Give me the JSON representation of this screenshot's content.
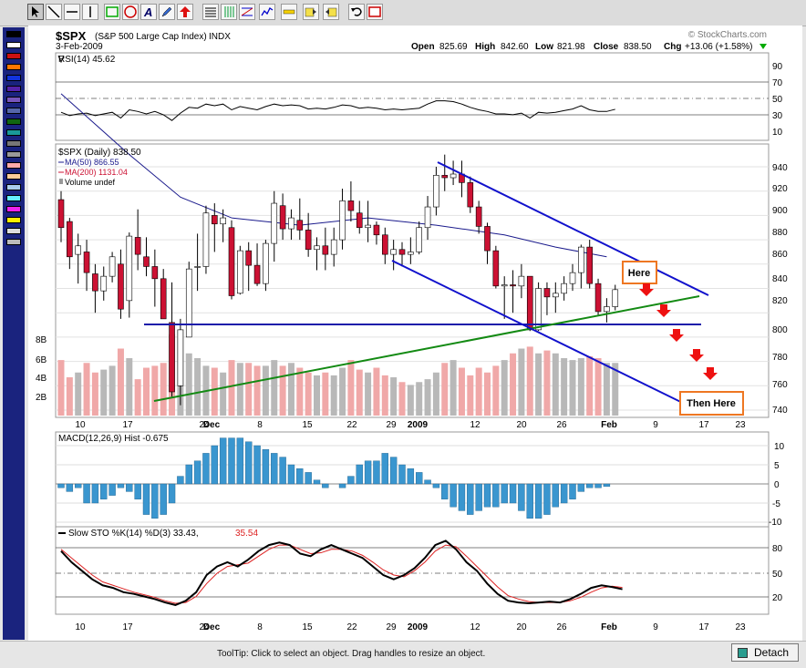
{
  "header": {
    "symbol": "$SPX",
    "name": "(S&P 500 Large Cap Index)",
    "exchange": "INDX",
    "date": "3-Feb-2009",
    "watermark": "© StockCharts.com",
    "open_label": "Open",
    "open": "825.69",
    "high_label": "High",
    "high": "842.60",
    "low_label": "Low",
    "low": "821.98",
    "close_label": "Close",
    "close": "838.50",
    "chg_label": "Chg",
    "chg": "+13.06 (+1.58%)"
  },
  "rsi": {
    "label": "RSI(14) 45.62",
    "ticks": [
      "90",
      "70",
      "50",
      "30",
      "10"
    ]
  },
  "price": {
    "legend": [
      "$SPX (Daily) 838.50",
      "MA(50) 866.55",
      "MA(200) 1131.04",
      "Volume undef"
    ],
    "ticks": [
      "940",
      "920",
      "900",
      "880",
      "860",
      "840",
      "820",
      "800",
      "780",
      "760",
      "740"
    ],
    "vol_ticks": [
      "8B",
      "6B",
      "4B",
      "2B"
    ]
  },
  "annotations": {
    "here": "Here",
    "then_here": "Then Here"
  },
  "dates": [
    "10",
    "17",
    "24",
    "Dec",
    "8",
    "15",
    "22",
    "29",
    "2009",
    "12",
    "20",
    "26",
    "Feb",
    "9",
    "17",
    "23"
  ],
  "macd": {
    "label": "MACD(12,26,9) Hist -0.675",
    "ticks": [
      "10",
      "5",
      "0",
      "-5",
      "-10"
    ]
  },
  "sto": {
    "label_a": "Slow STO %K(14) %D(3) 33.43,",
    "label_b": "35.54",
    "ticks": [
      "80",
      "50",
      "20"
    ]
  },
  "status": {
    "tooltip": "ToolTip: Click to select an object. Drag handles to resize an object.",
    "detach": "Detach"
  },
  "colors": {
    "up": "#ffffff",
    "down": "#cc1133",
    "blue": "#0000cc",
    "green": "#118811",
    "ma50": "#1a1a8c",
    "macd": "#3a96cf",
    "annot": "#ee7722",
    "arrow": "#ee1111"
  },
  "chart_data": {
    "type": "candlestick",
    "series": [
      {
        "name": "$SPX",
        "ohlc": [
          [
            913,
            920,
            878,
            890
          ],
          [
            895,
            898,
            856,
            866
          ],
          [
            868,
            885,
            844,
            875
          ],
          [
            870,
            880,
            838,
            853
          ],
          [
            852,
            860,
            820,
            838
          ],
          [
            838,
            858,
            830,
            850
          ],
          [
            850,
            870,
            845,
            866
          ],
          [
            860,
            872,
            815,
            823
          ],
          [
            830,
            886,
            816,
            883
          ],
          [
            882,
            905,
            855,
            868
          ],
          [
            866,
            882,
            850,
            858
          ],
          [
            858,
            872,
            825,
            848
          ],
          [
            848,
            856,
            815,
            815
          ],
          [
            812,
            845,
            751,
            755
          ],
          [
            760,
            815,
            744,
            806
          ],
          [
            800,
            862,
            800,
            856
          ],
          [
            858,
            885,
            838,
            858
          ],
          [
            858,
            908,
            852,
            902
          ],
          [
            900,
            910,
            870,
            893
          ],
          [
            893,
            905,
            878,
            898
          ],
          [
            890,
            896,
            831,
            834
          ],
          [
            836,
            875,
            835,
            871
          ],
          [
            871,
            878,
            838,
            859
          ],
          [
            859,
            877,
            842,
            844
          ],
          [
            844,
            880,
            838,
            877
          ],
          [
            877,
            920,
            862,
            910
          ],
          [
            908,
            918,
            880,
            889
          ],
          [
            889,
            905,
            880,
            898
          ],
          [
            896,
            914,
            880,
            888
          ],
          [
            888,
            902,
            866,
            872
          ],
          [
            872,
            882,
            855,
            875
          ],
          [
            875,
            890,
            855,
            868
          ],
          [
            868,
            890,
            858,
            880
          ],
          [
            880,
            922,
            872,
            912
          ],
          [
            912,
            928,
            895,
            904
          ],
          [
            902,
            912,
            885,
            890
          ],
          [
            890,
            912,
            878,
            892
          ],
          [
            892,
            895,
            876,
            884
          ],
          [
            884,
            890,
            860,
            868
          ],
          [
            868,
            880,
            855,
            872
          ],
          [
            872,
            878,
            858,
            868
          ],
          [
            868,
            882,
            860,
            870
          ],
          [
            870,
            895,
            868,
            890
          ],
          [
            890,
            916,
            880,
            907
          ],
          [
            907,
            940,
            900,
            933
          ],
          [
            933,
            950,
            920,
            931
          ],
          [
            931,
            945,
            925,
            934
          ],
          [
            934,
            945,
            915,
            927
          ],
          [
            927,
            932,
            902,
            907
          ],
          [
            907,
            912,
            885,
            891
          ],
          [
            891,
            894,
            860,
            871
          ],
          [
            871,
            875,
            840,
            842
          ],
          [
            842,
            850,
            815,
            843
          ],
          [
            843,
            855,
            820,
            842
          ],
          [
            842,
            860,
            832,
            850
          ],
          [
            850,
            850,
            805,
            806
          ],
          [
            806,
            845,
            805,
            840
          ],
          [
            840,
            845,
            818,
            833
          ],
          [
            833,
            845,
            820,
            836
          ],
          [
            836,
            850,
            830,
            844
          ],
          [
            844,
            860,
            838,
            853
          ],
          [
            853,
            876,
            840,
            874
          ],
          [
            874,
            880,
            840,
            844
          ],
          [
            844,
            848,
            818,
            821
          ],
          [
            821,
            832,
            812,
            825
          ],
          [
            825,
            843,
            822,
            839
          ]
        ]
      },
      {
        "name": "MA(50)",
        "values": [
          [
            0,
            1000
          ],
          [
            8,
            950
          ],
          [
            14,
            915
          ],
          [
            20,
            898
          ],
          [
            28,
            892
          ],
          [
            36,
            898
          ],
          [
            44,
            892
          ],
          [
            52,
            884
          ],
          [
            58,
            874
          ],
          [
            64,
            866
          ]
        ]
      },
      {
        "name": "MA(200)",
        "values": []
      },
      {
        "name": "Volume",
        "values": [
          5.8,
          4.0,
          4.5,
          5.5,
          4.5,
          4.8,
          5.2,
          7.0,
          6.0,
          3.8,
          5.0,
          5.2,
          5.5,
          8.5,
          9.0,
          6.5,
          6.0,
          5.2,
          5.0,
          4.5,
          5.8,
          5.5,
          5.5,
          5.2,
          5.2,
          5.8,
          5.2,
          5.5,
          5.0,
          4.5,
          4.2,
          4.5,
          4.2,
          5.0,
          5.8,
          4.8,
          4.5,
          5.0,
          4.2,
          4.0,
          3.5,
          3.2,
          3.5,
          3.8,
          4.5,
          5.5,
          5.8,
          5.0,
          4.2,
          5.0,
          4.5,
          5.2,
          5.8,
          6.5,
          7.0,
          7.2,
          6.5,
          6.8,
          6.5,
          6.0,
          5.8,
          6.0,
          6.2,
          6.0,
          5.5,
          5.5
        ]
      },
      {
        "name": "RSI(14)",
        "values": [
          42,
          38,
          40,
          41,
          38,
          40,
          42,
          35,
          45,
          43,
          40,
          43,
          39,
          32,
          41,
          48,
          47,
          52,
          50,
          52,
          45,
          49,
          47,
          45,
          49,
          52,
          50,
          51,
          50,
          46,
          47,
          46,
          48,
          51,
          50,
          47,
          48,
          47,
          45,
          46,
          45,
          46,
          47,
          52,
          56,
          56,
          55,
          52,
          48,
          45,
          43,
          40,
          40,
          39,
          41,
          35,
          42,
          41,
          42,
          44,
          46,
          50,
          45,
          43,
          43,
          45.62
        ]
      },
      {
        "name": "MACD Hist",
        "values": [
          -1,
          -2,
          -1,
          -5,
          -5,
          -4,
          -3,
          -1,
          -2,
          -4,
          -8,
          -9,
          -8,
          -5,
          2,
          5,
          6,
          8,
          10,
          12,
          12,
          12,
          11,
          10,
          9,
          8,
          7,
          5,
          4,
          3,
          1,
          -1,
          0,
          -1,
          2,
          5,
          6,
          6,
          8,
          7,
          5,
          4,
          3,
          1,
          -1,
          -4,
          -6,
          -7,
          -8,
          -7,
          -6,
          -6,
          -5,
          -5,
          -7,
          -9,
          -9,
          -8,
          -6,
          -5,
          -4,
          -2,
          -1,
          -1,
          -0.675
        ]
      },
      {
        "name": "%K(14)",
        "values": [
          78,
          65,
          55,
          45,
          38,
          35,
          30,
          28,
          25,
          22,
          18,
          15,
          20,
          30,
          50,
          60,
          65,
          60,
          68,
          78,
          85,
          88,
          85,
          75,
          72,
          80,
          85,
          80,
          75,
          70,
          60,
          50,
          45,
          50,
          58,
          70,
          85,
          90,
          80,
          65,
          55,
          40,
          28,
          20,
          18,
          17,
          18,
          19,
          18,
          22,
          28,
          35,
          38,
          36,
          33.43
        ]
      },
      {
        "name": "%D(3)",
        "values": [
          80,
          70,
          60,
          50,
          42,
          38,
          34,
          30,
          27,
          24,
          20,
          17,
          18,
          25,
          40,
          52,
          60,
          62,
          64,
          72,
          80,
          85,
          85,
          80,
          75,
          76,
          80,
          80,
          78,
          73,
          65,
          56,
          50,
          48,
          55,
          65,
          78,
          85,
          83,
          72,
          60,
          48,
          36,
          26,
          22,
          19,
          18,
          18,
          18,
          20,
          24,
          30,
          35,
          37,
          35.54
        ]
      }
    ],
    "price_axis": [
      740,
      940
    ],
    "rsi_axis": [
      10,
      90
    ],
    "macd_axis": [
      -10,
      10
    ],
    "sto_axis": [
      0,
      100
    ],
    "xlabel": "",
    "ylabel": "",
    "grid": true,
    "legend": "top-left"
  }
}
